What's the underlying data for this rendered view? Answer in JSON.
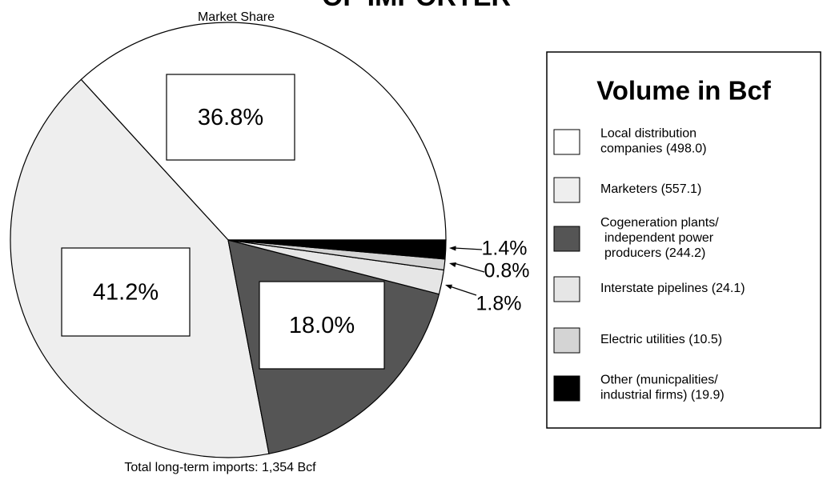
{
  "chart_data": {
    "type": "pie",
    "title": "OF IMPORTER",
    "subtitle": "Market Share",
    "footnote": "Total long-term imports:  1,354 Bcf",
    "legend_title": "Volume in Bcf",
    "categories": [
      [
        "Local distribution",
        "companies (498.0)"
      ],
      [
        "Marketers (557.1)"
      ],
      [
        "Cogeneration plants/",
        "independent power",
        "producers (244.2)"
      ],
      [
        "Interstate pipelines (24.1)"
      ],
      [
        "Electric utilities (10.5)"
      ],
      [
        "Other (municpalities/",
        "industrial firms) (19.9)"
      ]
    ],
    "values": [
      36.8,
      41.2,
      18.0,
      1.8,
      0.8,
      1.4
    ],
    "value_labels": [
      "36.8%",
      "41.2%",
      "18.0%",
      "1.8%",
      "0.8%",
      "1.4%"
    ],
    "colors": [
      "#ffffff",
      "#eeeeee",
      "#555555",
      "#e6e6e6",
      "#d4d4d4",
      "#000000"
    ]
  }
}
